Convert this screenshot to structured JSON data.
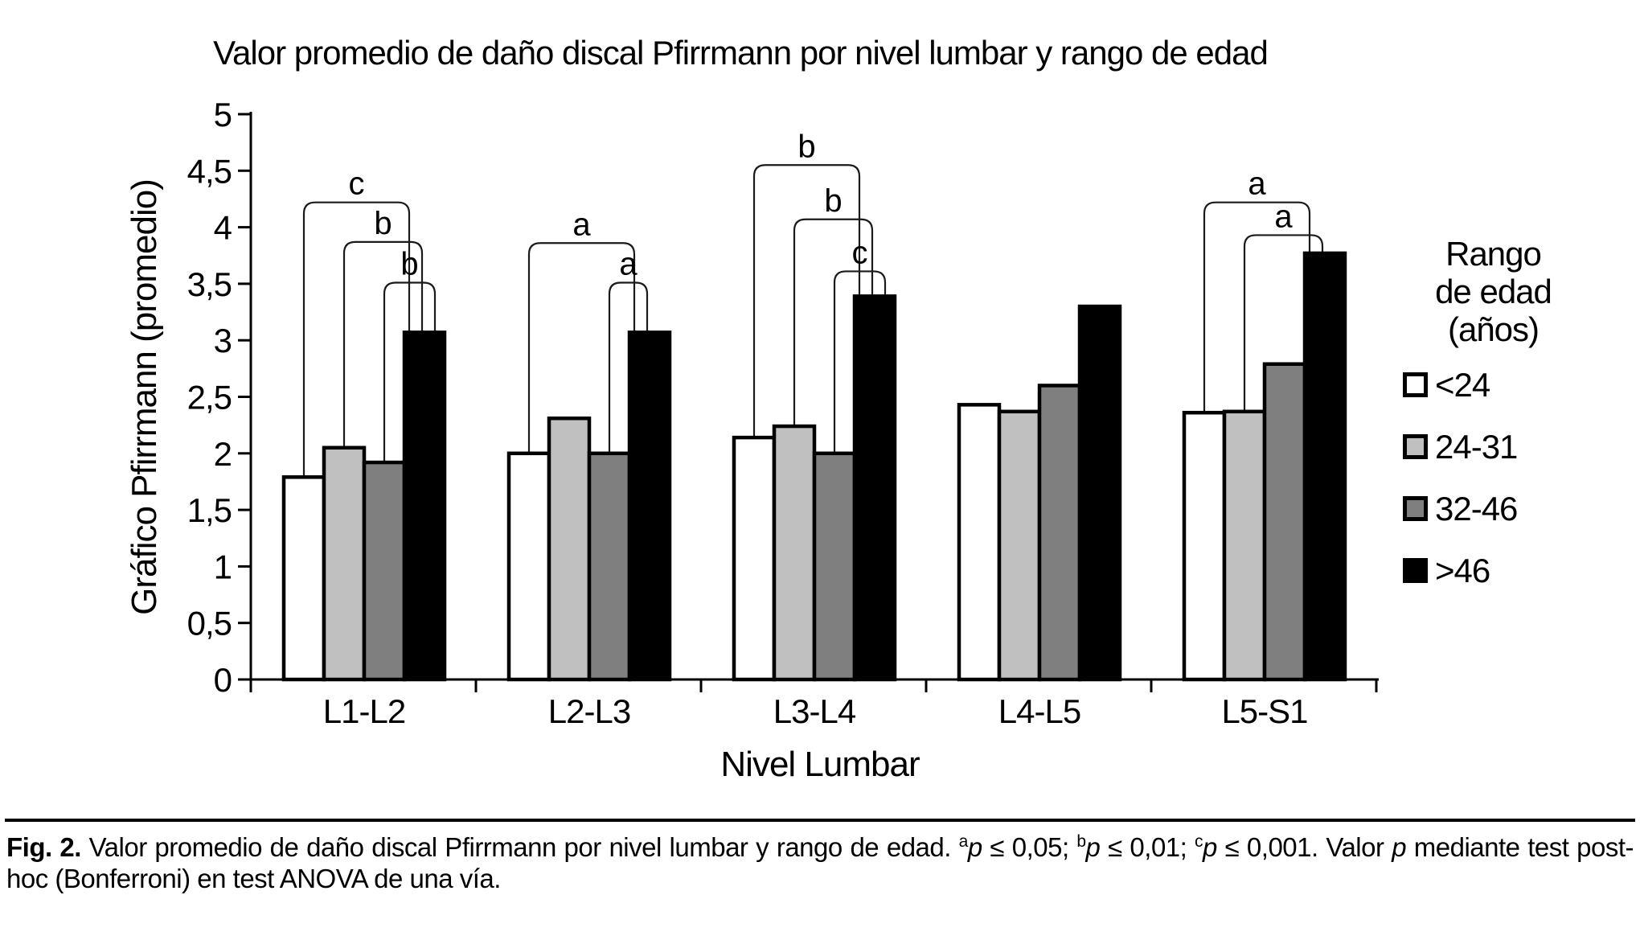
{
  "chart_data": {
    "type": "bar",
    "title": "Valor promedio de daño discal Pfirrmann por nivel lumbar y rango de edad",
    "xlabel": "Nivel Lumbar",
    "ylabel": "Gráfico Pfirrmann (promedio)",
    "ylim": [
      0,
      5
    ],
    "ytick_step": 0.5,
    "ytick_labels": [
      "0",
      "0,5",
      "1",
      "1,5",
      "2",
      "2,5",
      "3",
      "3,5",
      "4",
      "4,5",
      "5"
    ],
    "decimal_separator": ",",
    "grid": false,
    "legend_position": "right",
    "legend_title": "Rango\nde edad\n(años)",
    "categories": [
      "L1-L2",
      "L2-L3",
      "L3-L4",
      "L4-L5",
      "L5-S1"
    ],
    "series": [
      {
        "name": "<24",
        "color": "#ffffff",
        "values": [
          1.79,
          2.0,
          2.14,
          2.43,
          2.36
        ]
      },
      {
        "name": "24-31",
        "color": "#c0c0c0",
        "values": [
          2.05,
          2.31,
          2.24,
          2.37,
          2.37
        ]
      },
      {
        "name": "32-46",
        "color": "#7f7f7f",
        "values": [
          1.92,
          2.0,
          2.0,
          2.6,
          2.79
        ]
      },
      {
        "name": ">46",
        "color": "#000000",
        "values": [
          3.07,
          3.07,
          3.39,
          3.3,
          3.77
        ]
      }
    ],
    "significance_brackets": [
      {
        "category": "L1-L2",
        "from": "<24",
        "to": ">46",
        "label": "c",
        "height": 4.22
      },
      {
        "category": "L1-L2",
        "from": "24-31",
        "to": ">46",
        "label": "b",
        "height": 3.87
      },
      {
        "category": "L1-L2",
        "from": "32-46",
        "to": ">46",
        "label": "b",
        "height": 3.51
      },
      {
        "category": "L2-L3",
        "from": "<24",
        "to": ">46",
        "label": "a",
        "height": 3.86
      },
      {
        "category": "L2-L3",
        "from": "32-46",
        "to": ">46",
        "label": "a",
        "height": 3.51
      },
      {
        "category": "L3-L4",
        "from": "<24",
        "to": ">46",
        "label": "b",
        "height": 4.55
      },
      {
        "category": "L3-L4",
        "from": "24-31",
        "to": ">46",
        "label": "b",
        "height": 4.07
      },
      {
        "category": "L3-L4",
        "from": "32-46",
        "to": ">46",
        "label": "c",
        "height": 3.61
      },
      {
        "category": "L5-S1",
        "from": "<24",
        "to": ">46",
        "label": "a",
        "height": 4.22
      },
      {
        "category": "L5-S1",
        "from": "24-31",
        "to": ">46",
        "label": "a",
        "height": 3.93
      }
    ],
    "axis_color": "#000000",
    "bracket_color": "#1a1a1a"
  },
  "caption": {
    "parts": [
      {
        "text": "Fig. 2.",
        "style": "bold"
      },
      {
        "text": " Valor promedio de daño discal Pfirrmann por nivel lumbar y rango de edad. ",
        "style": ""
      },
      {
        "text": "a",
        "style": "sup"
      },
      {
        "text": "p",
        "style": "italic"
      },
      {
        "text": " ≤ 0,05; ",
        "style": ""
      },
      {
        "text": "b",
        "style": "sup"
      },
      {
        "text": "p",
        "style": "italic"
      },
      {
        "text": " ≤ 0,01; ",
        "style": ""
      },
      {
        "text": "c",
        "style": "sup"
      },
      {
        "text": "p",
        "style": "italic"
      },
      {
        "text": " ≤ 0,001. ",
        "style": ""
      },
      {
        "text": "Valor ",
        "style": ""
      },
      {
        "text": "p",
        "style": "italic"
      },
      {
        "text": " mediante test post-hoc (Bonferroni) en test ANOVA de una vía.",
        "style": ""
      }
    ]
  }
}
